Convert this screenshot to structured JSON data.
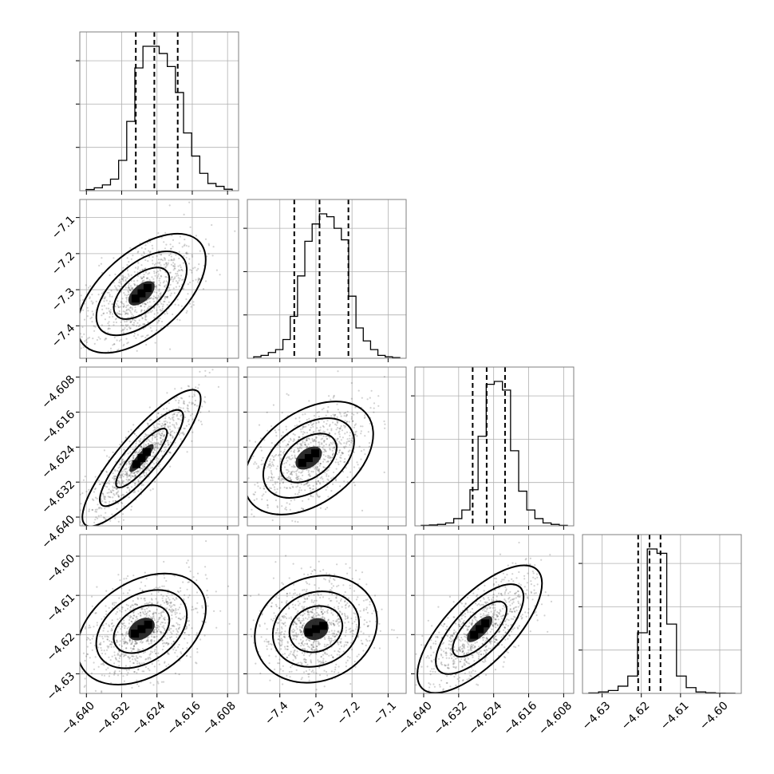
{
  "chart_data": {
    "type": "corner",
    "grid": true,
    "parameters": [
      {
        "range": [
          -4.6415,
          -4.6055
        ],
        "ticks": [
          -4.64,
          -4.632,
          -4.624,
          -4.616,
          -4.608
        ],
        "tick_labels": [
          "−4.640",
          "−4.632",
          "−4.624",
          "−4.616",
          "−4.608"
        ],
        "quantiles": [
          -4.6288,
          -4.6246,
          -4.6193
        ],
        "histogram": [
          0.8,
          2,
          4,
          8,
          21,
          48,
          85,
          100,
          100,
          95,
          86,
          68,
          40,
          24,
          12,
          5,
          3,
          1
        ]
      },
      {
        "range": [
          -7.49,
          -7.05
        ],
        "ticks": [
          -7.4,
          -7.3,
          -7.2,
          -7.1
        ],
        "tick_labels": [
          "−7.4",
          "−7.3",
          "−7.2",
          "−7.1"
        ],
        "quantiles": [
          -7.36,
          -7.29,
          -7.21
        ],
        "histogram": [
          1,
          2,
          4,
          6,
          13,
          29,
          57,
          81,
          93,
          100,
          98,
          90,
          82,
          43,
          21,
          12,
          6,
          2,
          1,
          0.5
        ]
      },
      {
        "range": [
          -4.642,
          -4.6057
        ],
        "ticks": [
          -4.64,
          -4.632,
          -4.624,
          -4.616,
          -4.608
        ],
        "tick_labels": [
          "−4.640",
          "−4.632",
          "−4.624",
          "−4.616",
          "−4.608"
        ],
        "quantiles": [
          -4.6288,
          -4.6256,
          -4.6214
        ],
        "histogram": [
          0.3,
          0.6,
          1,
          2,
          5,
          11,
          25,
          62,
          98,
          100,
          94,
          52,
          24,
          11,
          5,
          2,
          1,
          0.3
        ]
      },
      {
        "range": [
          -4.635,
          -4.5945
        ],
        "ticks": [
          -4.63,
          -4.62,
          -4.61,
          -4.6
        ],
        "tick_labels": [
          "−4.63",
          "−4.62",
          "−4.61",
          "−4.60"
        ],
        "quantiles": [
          -4.6208,
          -4.6179,
          -4.6151
        ],
        "histogram": [
          0.3,
          1,
          2,
          5,
          12,
          42,
          100,
          97,
          48,
          12,
          4,
          1,
          0.5,
          0.2,
          0.1
        ]
      }
    ],
    "correlations": {
      "1-0": 0.72,
      "2-0": 0.97,
      "2-1": 0.6,
      "3-0": 0.55,
      "3-1": 0.35,
      "3-2": 0.85
    },
    "density_peaks": {
      "1-0": [
        -4.6275,
        -7.31
      ],
      "2-0": [
        -4.6275,
        -4.6265
      ],
      "2-1": [
        -7.32,
        -4.6265
      ],
      "3-0": [
        -4.6275,
        -4.6186
      ],
      "3-1": [
        -7.3,
        -4.6186
      ],
      "3-2": [
        -4.6272,
        -4.6186
      ]
    }
  }
}
